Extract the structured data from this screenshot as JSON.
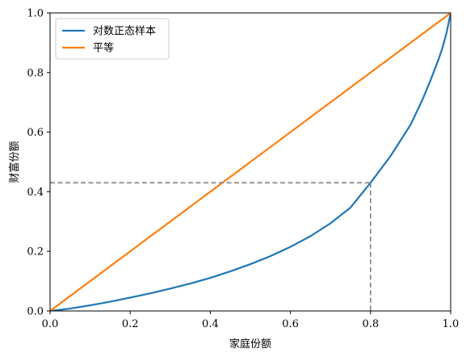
{
  "chart_data": {
    "type": "line",
    "xlabel": "家庭份额",
    "ylabel": "财富份额",
    "xlim": [
      0.0,
      1.0
    ],
    "ylim": [
      0.0,
      1.0
    ],
    "x_ticks": [
      "0.0",
      "0.2",
      "0.4",
      "0.6",
      "0.8",
      "1.0"
    ],
    "y_ticks": [
      "0.0",
      "0.2",
      "0.4",
      "0.6",
      "0.8",
      "1.0"
    ],
    "grid": false,
    "legend_position": "top-left",
    "series": [
      {
        "name": "对数正态样本",
        "color": "#1f77b4",
        "x": [
          0.0,
          0.05,
          0.1,
          0.15,
          0.2,
          0.25,
          0.3,
          0.35,
          0.4,
          0.45,
          0.5,
          0.55,
          0.6,
          0.65,
          0.7,
          0.75,
          0.8,
          0.85,
          0.9,
          0.93,
          0.95,
          0.97,
          0.98,
          0.99,
          1.0
        ],
        "y": [
          0.0,
          0.008,
          0.019,
          0.031,
          0.045,
          0.059,
          0.075,
          0.092,
          0.111,
          0.133,
          0.157,
          0.184,
          0.215,
          0.251,
          0.294,
          0.347,
          0.43,
          0.52,
          0.625,
          0.71,
          0.775,
          0.845,
          0.885,
          0.935,
          1.0
        ]
      },
      {
        "name": "平等",
        "color": "#ff7f0e",
        "x": [
          0.0,
          1.0
        ],
        "y": [
          0.0,
          1.0
        ]
      }
    ],
    "annotations": [
      {
        "type": "reference-lines",
        "style": "dashed",
        "color": "#808080",
        "x": 0.8,
        "y": 0.43
      }
    ]
  }
}
